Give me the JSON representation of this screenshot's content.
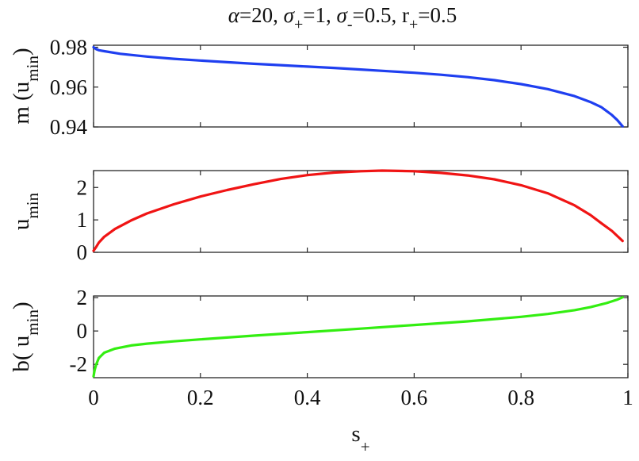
{
  "title": {
    "parts": [
      {
        "t": "α",
        "italic": true
      },
      {
        "t": "=20, "
      },
      {
        "t": "σ",
        "italic": true
      },
      {
        "t": "+",
        "sub": true
      },
      {
        "t": "=1, "
      },
      {
        "t": "σ",
        "italic": true
      },
      {
        "t": "-",
        "sub": true
      },
      {
        "t": "=0.5, r"
      },
      {
        "t": "+",
        "sub": true
      },
      {
        "t": "=0.5"
      }
    ]
  },
  "xlabel": {
    "main": "s",
    "sub": "+"
  },
  "colors": {
    "m": "#1f3ff0",
    "umin": "#f01414",
    "b": "#33ee11",
    "axis": "#262626"
  },
  "chart_data": [
    {
      "type": "line",
      "ylabel": {
        "pre": "m (",
        "main": "u",
        "sub": "min",
        "post": ")"
      },
      "xlim": [
        0,
        1
      ],
      "ylim": [
        0.94,
        0.981
      ],
      "yticks": [
        0.94,
        0.96,
        0.98
      ],
      "ytick_labels": [
        "0.94",
        "0.96",
        "0.98"
      ],
      "xticks": [
        0,
        0.2,
        0.4,
        0.6,
        0.8,
        1
      ],
      "show_xtick_labels": false,
      "series": [
        {
          "color": "#1f3ff0",
          "x": [
            0,
            0.005,
            0.01,
            0.02,
            0.05,
            0.1,
            0.15,
            0.2,
            0.25,
            0.3,
            0.35,
            0.4,
            0.45,
            0.5,
            0.55,
            0.6,
            0.65,
            0.7,
            0.75,
            0.8,
            0.85,
            0.9,
            0.93,
            0.95,
            0.97,
            0.98,
            0.99
          ],
          "y": [
            0.98,
            0.979,
            0.9785,
            0.978,
            0.9767,
            0.9753,
            0.9742,
            0.9733,
            0.9725,
            0.9717,
            0.971,
            0.9703,
            0.9696,
            0.9688,
            0.968,
            0.9672,
            0.9662,
            0.965,
            0.9635,
            0.9615,
            0.959,
            0.9555,
            0.9525,
            0.95,
            0.946,
            0.9435,
            0.9403
          ]
        }
      ]
    },
    {
      "type": "line",
      "ylabel": {
        "pre": "",
        "main": "u",
        "sub": "min",
        "post": ""
      },
      "xlim": [
        0,
        1
      ],
      "ylim": [
        0,
        2.52
      ],
      "yticks": [
        0,
        1,
        2
      ],
      "ytick_labels": [
        "0",
        "1",
        "2"
      ],
      "xticks": [
        0,
        0.2,
        0.4,
        0.6,
        0.8,
        1
      ],
      "show_xtick_labels": false,
      "series": [
        {
          "color": "#f01414",
          "x": [
            0,
            0.005,
            0.01,
            0.02,
            0.04,
            0.07,
            0.1,
            0.15,
            0.2,
            0.25,
            0.3,
            0.35,
            0.4,
            0.45,
            0.5,
            0.54,
            0.6,
            0.65,
            0.7,
            0.75,
            0.8,
            0.85,
            0.9,
            0.93,
            0.95,
            0.97,
            0.99
          ],
          "y": [
            0.05,
            0.17,
            0.3,
            0.48,
            0.72,
            0.98,
            1.2,
            1.48,
            1.72,
            1.92,
            2.1,
            2.26,
            2.38,
            2.46,
            2.5,
            2.52,
            2.5,
            2.45,
            2.37,
            2.25,
            2.07,
            1.82,
            1.45,
            1.15,
            0.9,
            0.66,
            0.35
          ]
        }
      ]
    },
    {
      "type": "line",
      "ylabel": {
        "pre": "b( ",
        "main": "u",
        "sub": "min",
        "post": ")"
      },
      "xlim": [
        0,
        1
      ],
      "ylim": [
        -2.8,
        2.1
      ],
      "yticks": [
        -2,
        0,
        2
      ],
      "ytick_labels": [
        "-2",
        "0",
        "2"
      ],
      "xticks": [
        0,
        0.2,
        0.4,
        0.6,
        0.8,
        1
      ],
      "xtick_labels": [
        "0",
        "0.2",
        "0.4",
        "0.6",
        "0.8",
        "1"
      ],
      "show_xtick_labels": true,
      "series": [
        {
          "color": "#33ee11",
          "x": [
            0,
            0.002,
            0.005,
            0.01,
            0.02,
            0.04,
            0.07,
            0.1,
            0.15,
            0.2,
            0.3,
            0.4,
            0.5,
            0.6,
            0.7,
            0.8,
            0.85,
            0.9,
            0.93,
            0.96,
            0.98,
            0.99
          ],
          "y": [
            -2.72,
            -2.35,
            -2.0,
            -1.62,
            -1.3,
            -1.06,
            -0.87,
            -0.76,
            -0.62,
            -0.5,
            -0.28,
            -0.07,
            0.14,
            0.36,
            0.58,
            0.85,
            1.02,
            1.25,
            1.43,
            1.67,
            1.88,
            2.02
          ]
        }
      ]
    }
  ]
}
